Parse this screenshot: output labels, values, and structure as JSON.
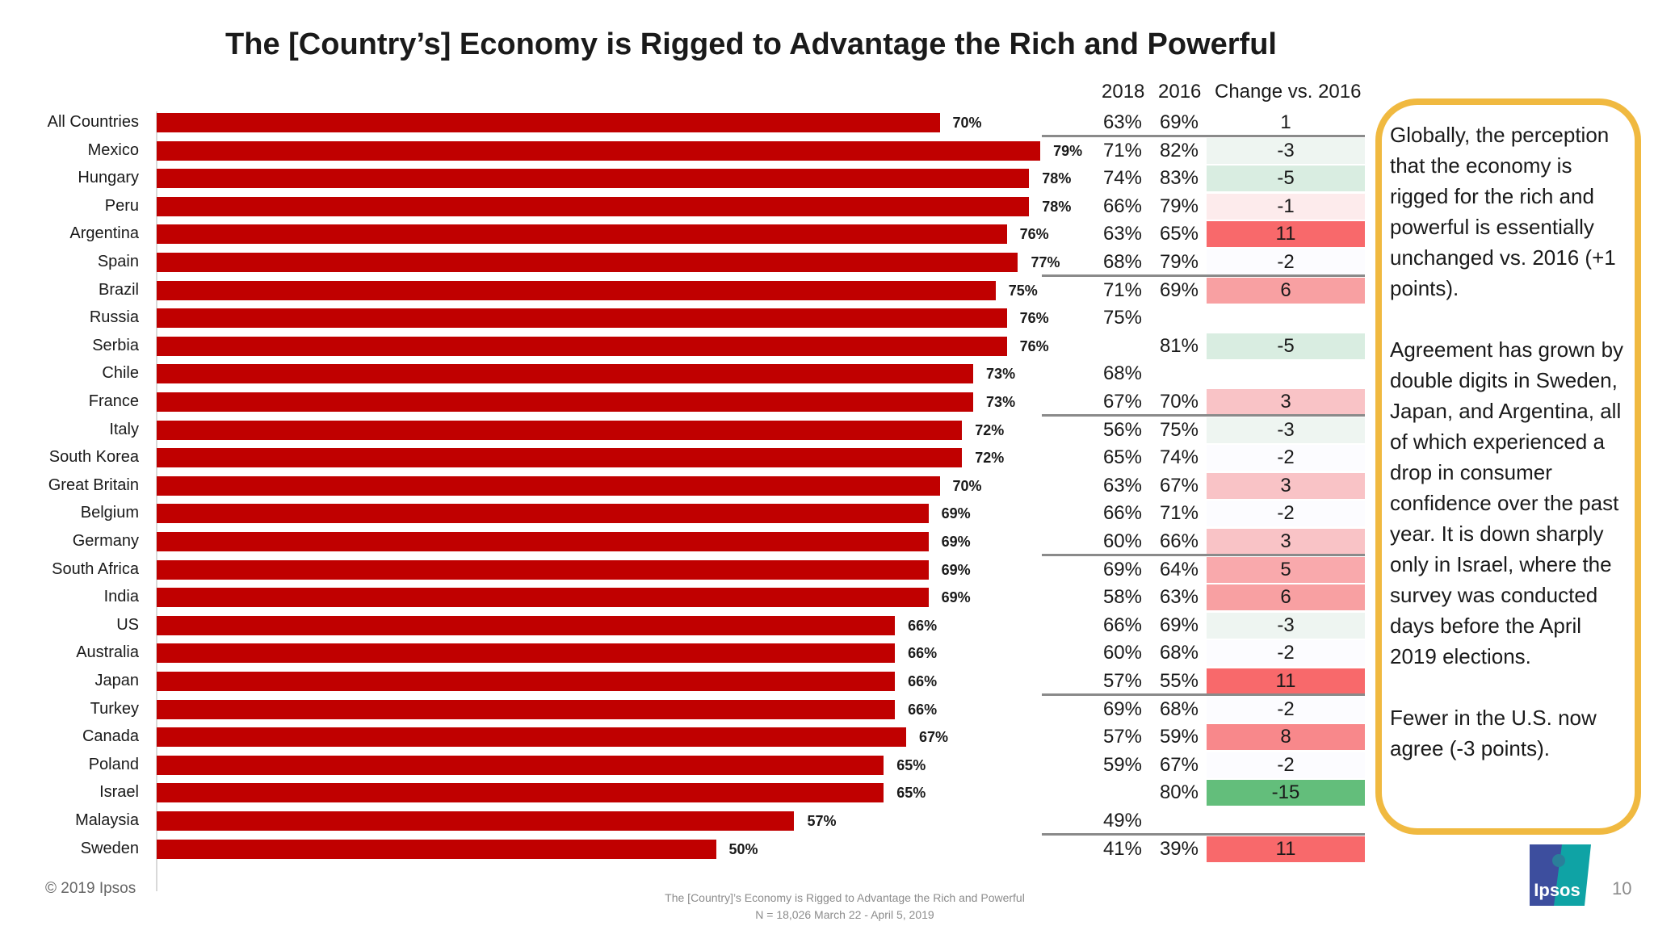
{
  "title": "The [Country’s] Economy is Rigged to Advantage the Rich and Powerful",
  "columns": {
    "y2018": "2018",
    "y2016": "2016",
    "change": "Change vs. 2016"
  },
  "chart_data": {
    "type": "bar",
    "orientation": "horizontal",
    "title": "The [Country’s] Economy is Rigged to Advantage the Rich and Powerful",
    "xlim": [
      0,
      100
    ],
    "grid": false,
    "bar_color": "#C00000",
    "categories": [
      "All Countries",
      "Mexico",
      "Hungary",
      "Peru",
      "Argentina",
      "Spain",
      "Brazil",
      "Russia",
      "Serbia",
      "Chile",
      "France",
      "Italy",
      "South Korea",
      "Great Britain",
      "Belgium",
      "Germany",
      "South Africa",
      "India",
      "US",
      "Australia",
      "Japan",
      "Turkey",
      "Canada",
      "Poland",
      "Israel",
      "Malaysia",
      "Sweden"
    ],
    "values": [
      70,
      79,
      78,
      78,
      76,
      77,
      75,
      76,
      76,
      73,
      73,
      72,
      72,
      70,
      69,
      69,
      69,
      69,
      66,
      66,
      66,
      66,
      67,
      65,
      65,
      57,
      50
    ],
    "value_labels": [
      "70%",
      "79%",
      "78%",
      "78%",
      "76%",
      "77%",
      "75%",
      "76%",
      "76%",
      "73%",
      "73%",
      "72%",
      "72%",
      "70%",
      "69%",
      "69%",
      "69%",
      "69%",
      "66%",
      "66%",
      "66%",
      "66%",
      "67%",
      "65%",
      "65%",
      "57%",
      "50%"
    ],
    "table": {
      "y2018": [
        "63%",
        "71%",
        "74%",
        "66%",
        "63%",
        "68%",
        "71%",
        "75%",
        "",
        "68%",
        "67%",
        "56%",
        "65%",
        "63%",
        "66%",
        "60%",
        "69%",
        "58%",
        "66%",
        "60%",
        "57%",
        "69%",
        "57%",
        "59%",
        "",
        "49%",
        "41%"
      ],
      "y2016": [
        "69%",
        "82%",
        "83%",
        "79%",
        "65%",
        "79%",
        "69%",
        "",
        "81%",
        "",
        "70%",
        "75%",
        "74%",
        "67%",
        "71%",
        "66%",
        "64%",
        "63%",
        "69%",
        "68%",
        "55%",
        "68%",
        "59%",
        "67%",
        "80%",
        "",
        "39%"
      ],
      "change": [
        "1",
        "-3",
        "-5",
        "-1",
        "11",
        "-2",
        "6",
        "",
        "-5",
        "",
        "3",
        "-3",
        "-2",
        "3",
        "-2",
        "3",
        "5",
        "6",
        "-3",
        "-2",
        "11",
        "-2",
        "8",
        "-2",
        "-15",
        "",
        "11"
      ],
      "change_colors": [
        "#FFFFFF",
        "#EEF5F1",
        "#D9EDE1",
        "#FDEBEC",
        "#F8696B",
        "#FCFCFF",
        "#F8A0A2",
        "#FFFFFF",
        "#D9EDE1",
        "#FFFFFF",
        "#F9C3C6",
        "#EEF5F1",
        "#FCFCFF",
        "#F9C3C6",
        "#FCFCFF",
        "#F9C3C6",
        "#F9A9AC",
        "#F8A0A2",
        "#EEF5F1",
        "#FCFCFF",
        "#F8696B",
        "#FCFCFF",
        "#F8888B",
        "#FCFCFF",
        "#63BE7B",
        "#FFFFFF",
        "#F8696B"
      ]
    },
    "group_separators_after": [
      "All Countries",
      "Spain",
      "France",
      "Germany",
      "Japan",
      "Malaysia"
    ]
  },
  "note": {
    "p1": "Globally, the perception that the economy is rigged for the rich and powerful is essentially unchanged vs. 2016 (+1 points).",
    "p2": "Agreement has grown by double digits in Sweden, Japan, and Argentina, all of which experienced a drop in consumer confidence over the past year. It is down sharply only in Israel, where the survey was conducted days before the April 2019 elections.",
    "p3": "Fewer in the U.S. now agree (-3 points).",
    "border_color": "#F0B940"
  },
  "footer": {
    "copyright": "© 2019 Ipsos",
    "source_line1": "The [Country]’s Economy is Rigged to Advantage the Rich and Powerful",
    "source_line2": "N = 18,026  March 22 - April 5, 2019",
    "logo": "Ipsos",
    "page": "10"
  }
}
